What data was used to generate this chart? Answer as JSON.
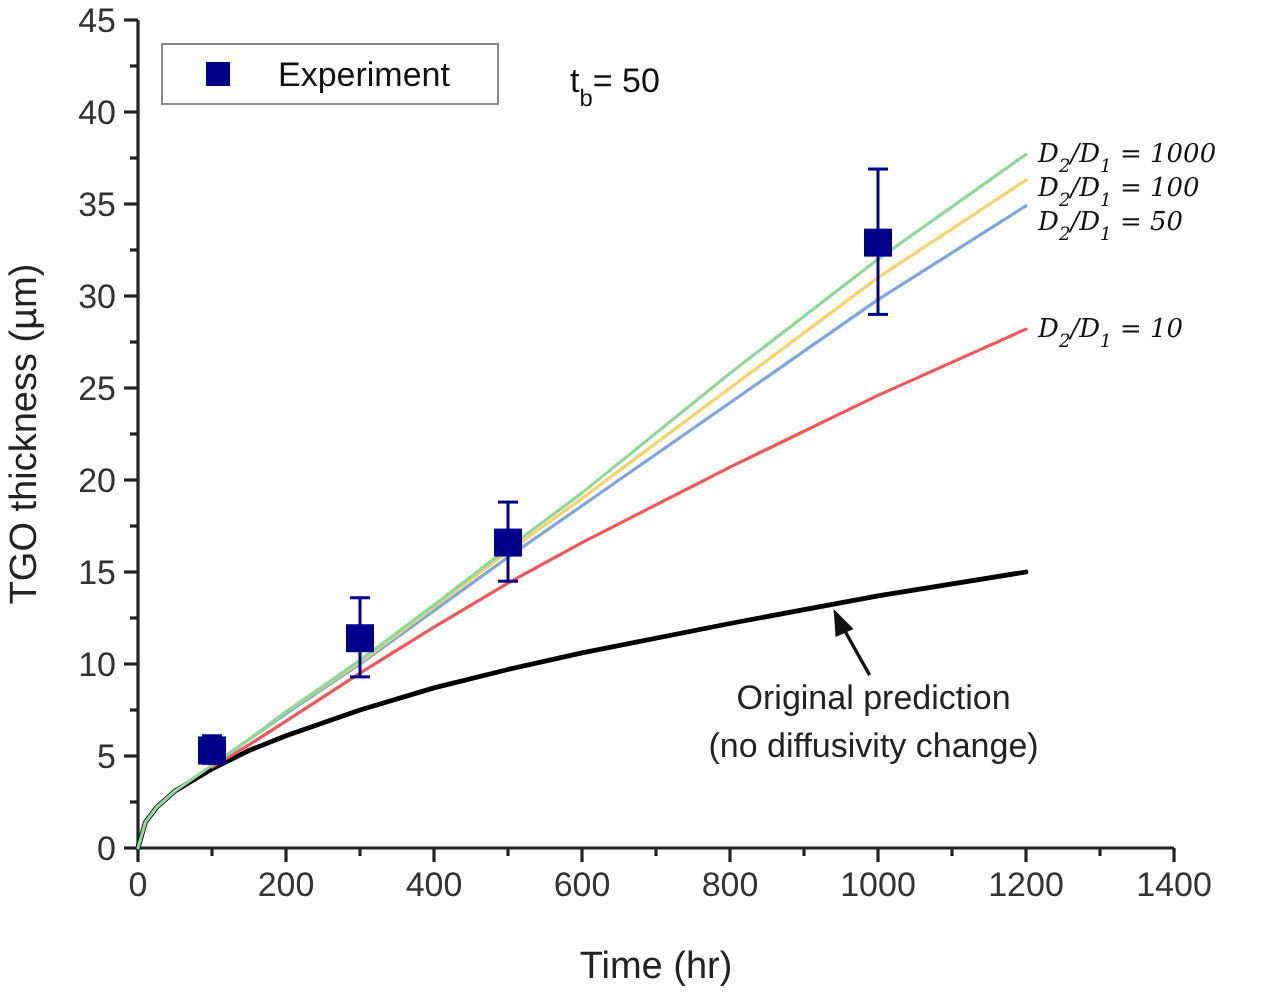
{
  "chart_data": {
    "type": "line",
    "xlabel": "Time (hr)",
    "ylabel": "TGO thickness (µm)",
    "xlim": [
      0,
      1400
    ],
    "xticks": [
      0,
      200,
      400,
      600,
      800,
      1000,
      1200,
      1400
    ],
    "ylim": [
      0,
      45
    ],
    "yticks": [
      0,
      5,
      10,
      15,
      20,
      25,
      30,
      35,
      40,
      45
    ],
    "grid": false,
    "legend": "top left",
    "marker": "none",
    "line_style": "solid",
    "x": [
      0,
      10,
      25,
      50,
      100,
      150,
      200,
      300,
      400,
      500,
      600,
      800,
      1000,
      1200
    ],
    "series": [
      {
        "color": "#000000",
        "values": [
          0,
          1.4,
          2.2,
          3.1,
          4.3,
          5.3,
          6.1,
          7.5,
          8.7,
          9.7,
          10.6,
          12.2,
          13.7,
          15.0
        ]
      },
      {
        "name": "D$_{2}$/D$_{1}$ = 10",
        "color": "#f0575a",
        "values": [
          null,
          null,
          null,
          null,
          4.4,
          5.6,
          6.9,
          9.5,
          12.0,
          14.4,
          16.6,
          20.7,
          24.6,
          28.2
        ]
      },
      {
        "name": "D$_{2}$/D$_{1}$ = 50",
        "color": "#7ea6dc",
        "values": [
          null,
          null,
          null,
          null,
          4.5,
          5.9,
          7.3,
          10.0,
          12.9,
          15.8,
          18.6,
          24.2,
          29.8,
          34.9
        ]
      },
      {
        "name": "D$_{2}$/D$_{1}$ = 100",
        "color": "#f5d36a",
        "values": [
          null,
          null,
          null,
          null,
          null,
          5.9,
          7.4,
          10.1,
          13.1,
          16.1,
          19.0,
          25.0,
          31.0,
          36.3
        ]
      },
      {
        "name": "D$_{2}$/D$_{1}$ = 1000",
        "color": "#8fd79a",
        "values": [
          0,
          1.4,
          2.2,
          3.1,
          4.5,
          5.9,
          7.4,
          10.2,
          13.2,
          16.3,
          19.3,
          25.8,
          32.0,
          37.7
        ]
      },
      {
        "name": "Experiment",
        "type": "scatter",
        "marker": "square",
        "color": "#00008b",
        "x": [
          100,
          300,
          500,
          1000
        ],
        "values": [
          5.3,
          11.4,
          16.6,
          32.9
        ],
        "errors": [
          [
            4.6,
            6.1
          ],
          [
            9.3,
            13.6
          ],
          [
            14.5,
            18.8
          ],
          [
            29.0,
            36.9
          ]
        ]
      }
    ],
    "annotations": [
      "t$_{b}$= 50",
      {
        "text": "Original prediction\n(no diffusivity change)",
        "x": 940,
        "y": 13.2
      }
    ]
  }
}
